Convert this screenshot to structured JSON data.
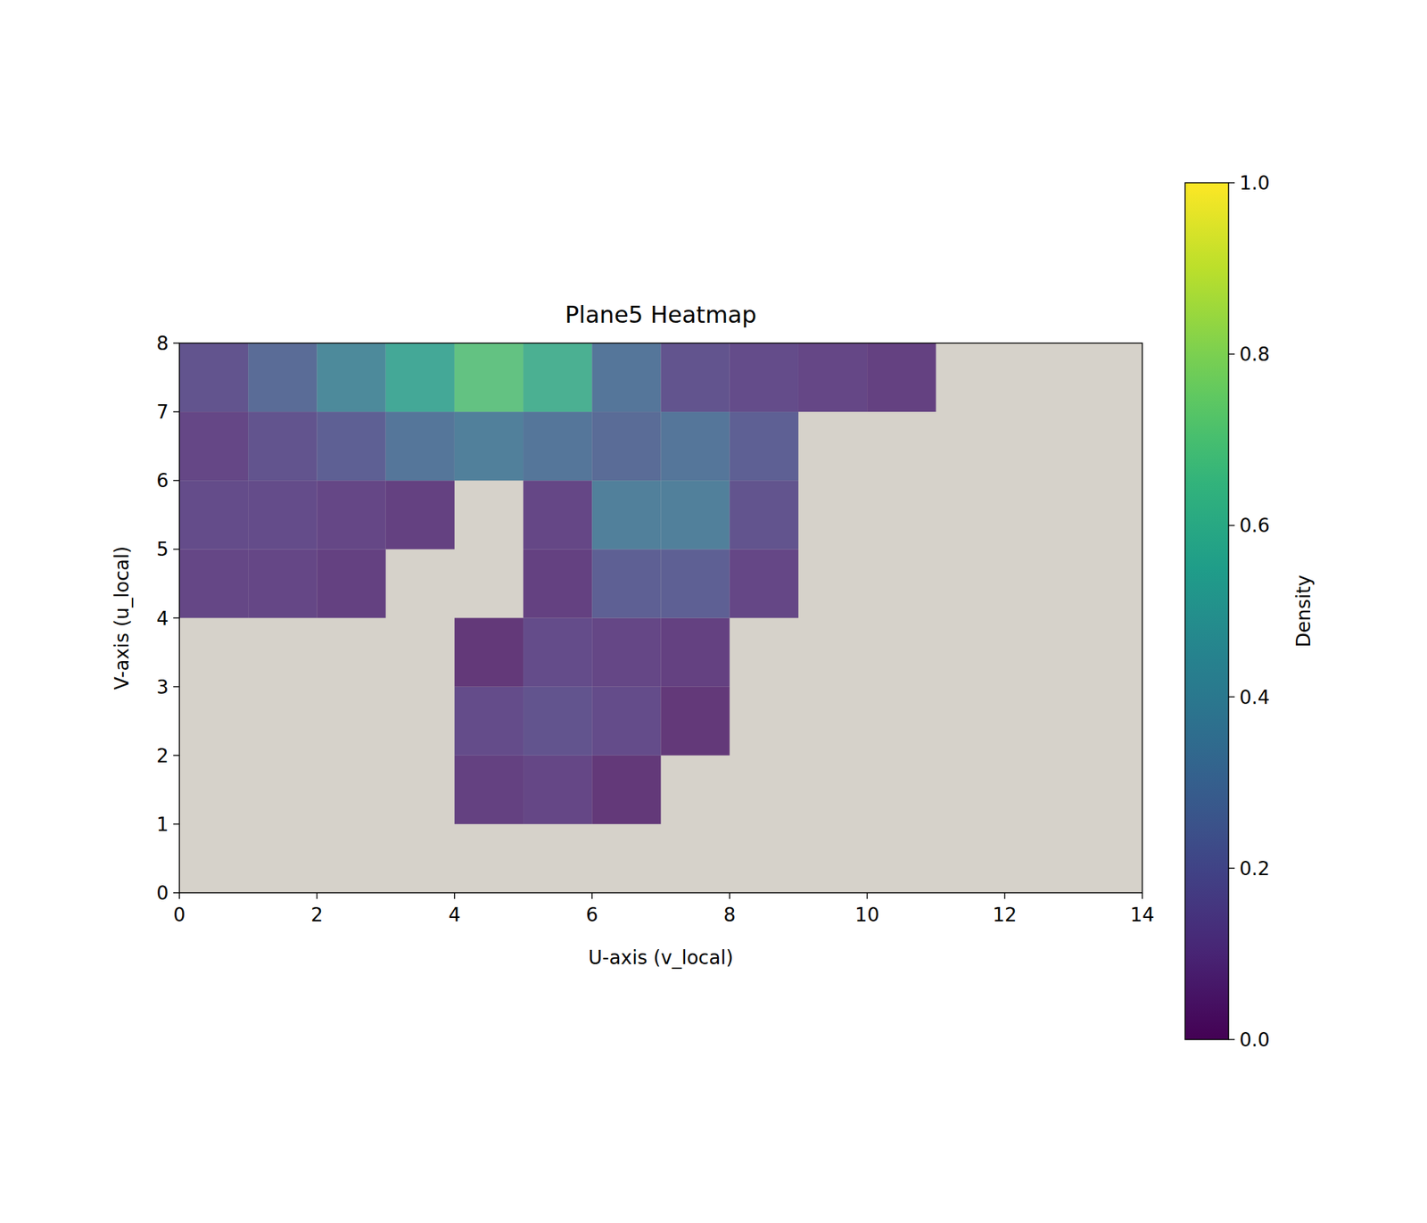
{
  "chart_data": {
    "type": "heatmap",
    "title": "Plane5 Heatmap",
    "x_label": "U-axis (v_local)",
    "y_label": "V-axis (u_local)",
    "xlim": [
      0,
      14
    ],
    "ylim": [
      0,
      8
    ],
    "xticks": [
      0,
      2,
      4,
      6,
      8,
      10,
      12,
      14
    ],
    "yticks": [
      0,
      1,
      2,
      3,
      4,
      5,
      6,
      7,
      8
    ],
    "x_bins": [
      0,
      1,
      2,
      3,
      4,
      5,
      6,
      7,
      8,
      9,
      10,
      11,
      12,
      13,
      14
    ],
    "y_bins": [
      0,
      1,
      2,
      3,
      4,
      5,
      6,
      7,
      8
    ],
    "z": [
      [
        0,
        0,
        0,
        0,
        0,
        0,
        0,
        0,
        0,
        0,
        0,
        0,
        0,
        0
      ],
      [
        0,
        0,
        0,
        0,
        0.08,
        0.1,
        0.05,
        0,
        0,
        0,
        0,
        0,
        0,
        0
      ],
      [
        0,
        0,
        0,
        0,
        0.12,
        0.15,
        0.12,
        0.05,
        0,
        0,
        0,
        0,
        0,
        0
      ],
      [
        0,
        0,
        0,
        0,
        0.05,
        0.12,
        0.1,
        0.08,
        0,
        0,
        0,
        0,
        0,
        0
      ],
      [
        0.1,
        0.1,
        0.08,
        0,
        0,
        0.08,
        0.2,
        0.2,
        0.1,
        0,
        0,
        0,
        0,
        0
      ],
      [
        0.12,
        0.12,
        0.1,
        0.08,
        0,
        0.1,
        0.35,
        0.35,
        0.15,
        0,
        0,
        0,
        0,
        0
      ],
      [
        0.1,
        0.15,
        0.2,
        0.3,
        0.35,
        0.3,
        0.25,
        0.3,
        0.2,
        0,
        0,
        0,
        0,
        0
      ],
      [
        0.15,
        0.25,
        0.4,
        0.55,
        0.7,
        0.6,
        0.3,
        0.15,
        0.12,
        0.1,
        0.08,
        0,
        0,
        0
      ]
    ],
    "colorbar_label": "Density",
    "zlim": [
      0,
      1
    ],
    "zticks": [
      {
        "value": 0,
        "label": "0.0"
      },
      0.2,
      0.4,
      0.6,
      0.8,
      {
        "value": 1,
        "label": "1.0"
      }
    ]
  }
}
